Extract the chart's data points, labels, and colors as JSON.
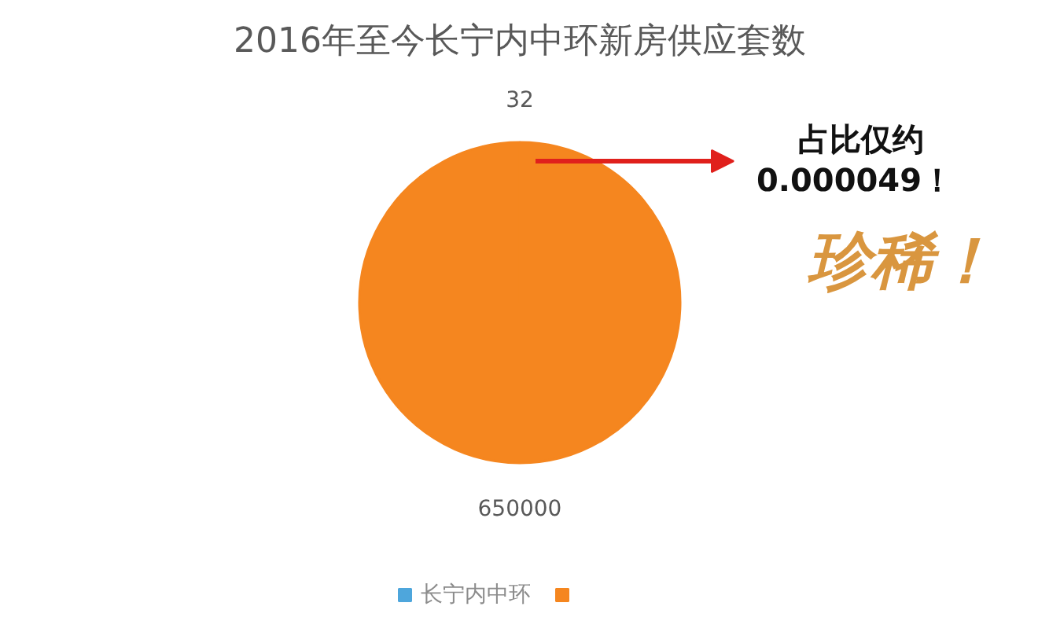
{
  "chart_data": {
    "type": "pie",
    "title": "2016年至今长宁内中环新房供应套数",
    "categories": [
      "长宁内中环",
      null
    ],
    "values": [
      32,
      650000
    ],
    "colors": [
      "#4ea6dc",
      "#f5861f"
    ],
    "data_labels": true,
    "legend": "bottom",
    "annotations": [
      "占比仅约",
      "0.000049！",
      "珍稀！"
    ]
  }
}
